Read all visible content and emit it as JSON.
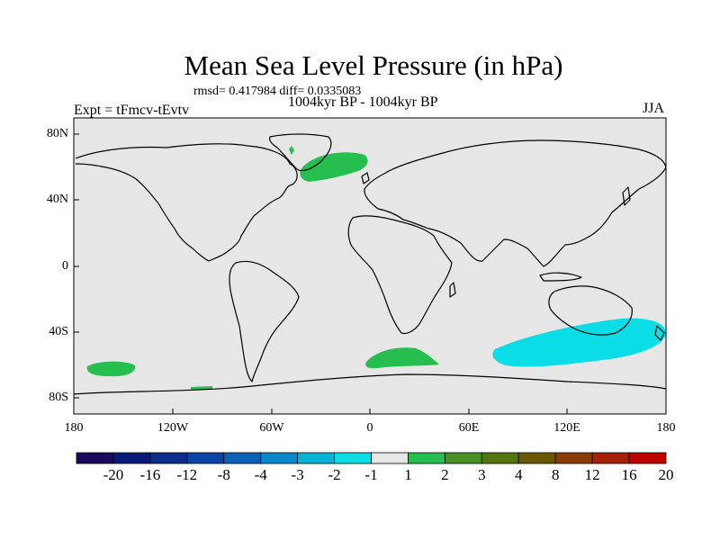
{
  "title": "Mean Sea Level Pressure (in hPa)",
  "stats": "rmsd= 0.417984 diff= 0.0335083",
  "period": "1004kyr BP - 1004kyr BP",
  "experiment": "Expt = tFmcv-tEvtv",
  "season": "JJA",
  "lat_labels": [
    "80N",
    "40N",
    "0",
    "40S",
    "80S"
  ],
  "lon_labels": [
    "180",
    "120W",
    "60W",
    "0",
    "60E",
    "120E",
    "180"
  ],
  "colorbar": {
    "labels": [
      "-20",
      "-16",
      "-12",
      "-8",
      "-4",
      "-3",
      "-2",
      "-1",
      "1",
      "2",
      "3",
      "4",
      "8",
      "12",
      "16",
      "20"
    ],
    "colors": [
      "#1a0a5e",
      "#0a1a78",
      "#0d2f8c",
      "#0a45a6",
      "#0b62b8",
      "#0b87cc",
      "#07b4d8",
      "#0bdde6",
      "#e6e6e6",
      "#26bf4f",
      "#4a9125",
      "#56750e",
      "#6b5700",
      "#8c3d05",
      "#a61f07",
      "#c00000"
    ]
  },
  "map_colors": {
    "background": "#e6e6e6",
    "negative_anomaly": "#0bdde6",
    "positive_anomaly": "#26bf4f"
  }
}
